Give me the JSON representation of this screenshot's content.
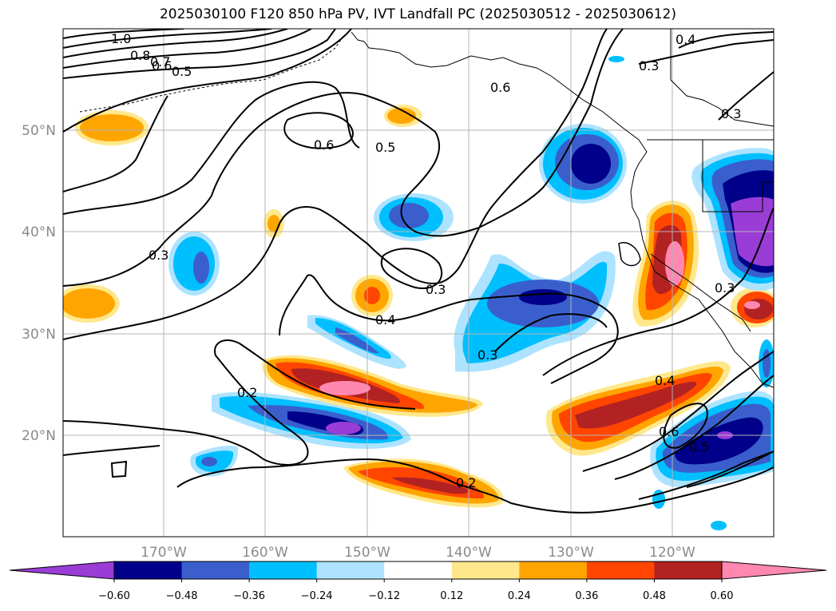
{
  "title": "2025030100 F120 850 hPa PV, IVT Landfall PC (2025030512 - 2025030612)",
  "lon_labels": [
    "170°W",
    "160°W",
    "150°W",
    "140°W",
    "130°W",
    "120°W"
  ],
  "lat_labels": [
    "50°N",
    "40°N",
    "30°N",
    "20°N"
  ],
  "contour_labels": [
    "1.0",
    "0.8",
    "0.7",
    "0.6",
    "0.5",
    "0.6",
    "0.5",
    "0.6",
    "0.4",
    "0.3",
    "0.3",
    "0.3",
    "0.3",
    "0.4",
    "0.3",
    "0.2",
    "0.4",
    "0.6",
    "0.5",
    "0.2",
    "0.3"
  ],
  "colorbar": {
    "colors": [
      "#9a3cd6",
      "#00008b",
      "#3a5fcd",
      "#00bfff",
      "#ade3ff",
      "#ffffff",
      "#ffe88c",
      "#ffa500",
      "#ff4500",
      "#b22222",
      "#ff88b0"
    ],
    "tick_labels": [
      "−0.60",
      "−0.48",
      "−0.36",
      "−0.24",
      "−0.12",
      "0.12",
      "0.24",
      "0.36",
      "0.48",
      "0.60"
    ]
  }
}
